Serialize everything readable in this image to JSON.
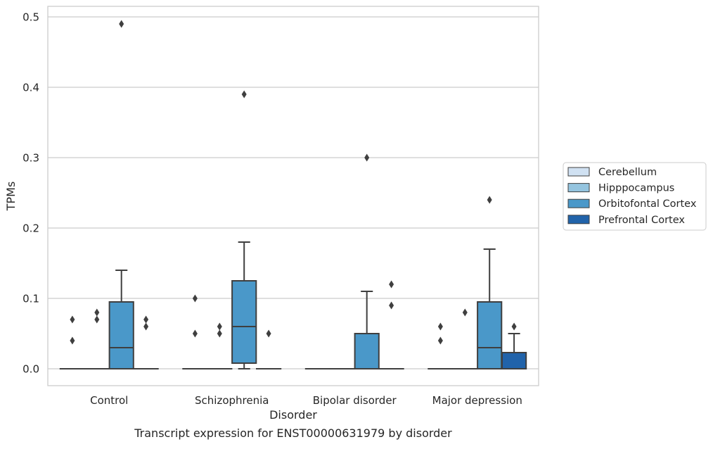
{
  "caption": "Transcript expression for ENST00000631979 by disorder",
  "chart_data": {
    "type": "box",
    "xlabel": "Disorder",
    "ylabel": "TPMs",
    "ylim": [
      -0.024,
      0.515
    ],
    "yticks": [
      0.0,
      0.1,
      0.2,
      0.3,
      0.4,
      0.5
    ],
    "ytick_labels": [
      "0.0",
      "0.1",
      "0.2",
      "0.3",
      "0.4",
      "0.5"
    ],
    "grid": "horizontal",
    "legend_position": "right",
    "categories": [
      "Control",
      "Schizophrenia",
      "Bipolar disorder",
      "Major depression"
    ],
    "series": [
      {
        "name": "Cerebellum",
        "color": "#d0e1f2",
        "boxes": [
          {
            "whislo": 0,
            "q1": 0,
            "med": 0,
            "q3": 0,
            "whishi": 0,
            "fliers": [
              0.04,
              0.07
            ]
          },
          {
            "whislo": 0,
            "q1": 0,
            "med": 0,
            "q3": 0,
            "whishi": 0,
            "fliers": [
              0.05,
              0.1
            ]
          },
          {
            "whislo": 0,
            "q1": 0,
            "med": 0,
            "q3": 0,
            "whishi": 0,
            "fliers": []
          },
          {
            "whislo": 0,
            "q1": 0,
            "med": 0,
            "q3": 0,
            "whishi": 0,
            "fliers": [
              0.04,
              0.06
            ]
          }
        ]
      },
      {
        "name": "Hipppocampus",
        "color": "#94c4df",
        "boxes": [
          {
            "whislo": 0,
            "q1": 0,
            "med": 0,
            "q3": 0,
            "whishi": 0,
            "fliers": [
              0.07,
              0.08
            ]
          },
          {
            "whislo": 0,
            "q1": 0,
            "med": 0,
            "q3": 0,
            "whishi": 0,
            "fliers": [
              0.05,
              0.06
            ]
          },
          {
            "whislo": 0,
            "q1": 0,
            "med": 0,
            "q3": 0,
            "whishi": 0,
            "fliers": []
          },
          {
            "whislo": 0,
            "q1": 0,
            "med": 0,
            "q3": 0,
            "whishi": 0,
            "fliers": [
              0.08
            ]
          }
        ]
      },
      {
        "name": "Orbitofontal Cortex",
        "color": "#4a98c9",
        "boxes": [
          {
            "whislo": 0,
            "q1": 0,
            "med": 0.03,
            "q3": 0.095,
            "whishi": 0.14,
            "fliers": [
              0.49
            ]
          },
          {
            "whislo": 0,
            "q1": 0.008,
            "med": 0.06,
            "q3": 0.125,
            "whishi": 0.18,
            "fliers": [
              0.39
            ]
          },
          {
            "whislo": 0,
            "q1": 0,
            "med": 0,
            "q3": 0.05,
            "whishi": 0.11,
            "fliers": [
              0.3
            ]
          },
          {
            "whislo": 0,
            "q1": 0,
            "med": 0.03,
            "q3": 0.095,
            "whishi": 0.17,
            "fliers": [
              0.24
            ]
          }
        ]
      },
      {
        "name": "Prefrontal Cortex",
        "color": "#2163aa",
        "boxes": [
          {
            "whislo": 0,
            "q1": 0,
            "med": 0,
            "q3": 0,
            "whishi": 0,
            "fliers": [
              0.06,
              0.07
            ]
          },
          {
            "whislo": 0,
            "q1": 0,
            "med": 0,
            "q3": 0,
            "whishi": 0,
            "fliers": [
              0.05
            ]
          },
          {
            "whislo": 0,
            "q1": 0,
            "med": 0,
            "q3": 0,
            "whishi": 0,
            "fliers": [
              0.09,
              0.12
            ]
          },
          {
            "whislo": 0,
            "q1": 0,
            "med": 0,
            "q3": 0.023,
            "whishi": 0.05,
            "fliers": [
              0.06
            ]
          }
        ]
      }
    ]
  }
}
